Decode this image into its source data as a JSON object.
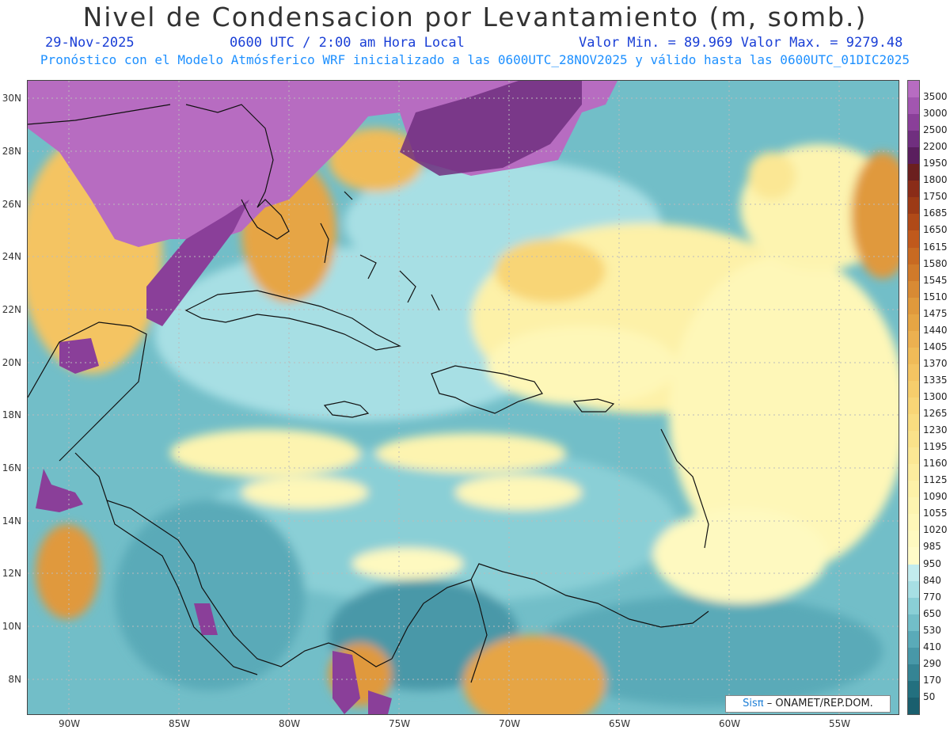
{
  "title": "Nivel de Condensacion por Levantamiento (m, somb.)",
  "header": {
    "date": "29-Nov-2025",
    "time": "0600 UTC / 2:00 am Hora Local",
    "min_max": "Valor Min. = 89.969   Valor Max. = 9279.48"
  },
  "subtitle": "Pronóstico con el Modelo Atmósferico WRF inicializado a las 0600UTC_28NOV2025 y válido hasta las  0600UTC_01DIC2025",
  "axes": {
    "lat_labels": [
      "30N",
      "28N",
      "26N",
      "24N",
      "22N",
      "20N",
      "18N",
      "16N",
      "14N",
      "12N",
      "10N",
      "8N"
    ],
    "lon_labels": [
      "90W",
      "85W",
      "80W",
      "75W",
      "70W",
      "65W",
      "60W",
      "55W"
    ]
  },
  "legend": {
    "levels": [
      "3500",
      "3000",
      "2500",
      "2200",
      "1950",
      "1800",
      "1750",
      "1685",
      "1650",
      "1615",
      "1580",
      "1545",
      "1510",
      "1475",
      "1440",
      "1405",
      "1370",
      "1335",
      "1300",
      "1265",
      "1230",
      "1195",
      "1160",
      "1125",
      "1090",
      "1055",
      "1020",
      "985",
      "950",
      "840",
      "770",
      "650",
      "530",
      "410",
      "290",
      "170",
      "50"
    ],
    "colors": [
      "#b76cc1",
      "#a256b0",
      "#8a3f99",
      "#702f7f",
      "#5a1e5e",
      "#6b1f1f",
      "#8a2c18",
      "#9c3a16",
      "#b04a18",
      "#c0591c",
      "#c86a22",
      "#d07a2a",
      "#d88a34",
      "#e0993c",
      "#e6a544",
      "#ecb050",
      "#f0bb58",
      "#f4c462",
      "#f6cd6c",
      "#f8d576",
      "#f9dc80",
      "#fae28a",
      "#fbe794",
      "#fcec9e",
      "#fdf1a8",
      "#fdf4b0",
      "#fef7b8",
      "#fef9c0",
      "#fffbc8",
      "#c2ecee",
      "#a7dfe4",
      "#8acfd6",
      "#72bec8",
      "#5aaab8",
      "#4898a8",
      "#358494",
      "#23707f"
    ],
    "colormap_name": "lcl-shaded"
  },
  "map": {
    "region": "Caribbean / Gulf of Mexico",
    "land_high_color": "#b76cc1",
    "ocean_base_color": "#72bec8"
  },
  "credit": {
    "sis": "Sisπ",
    "text": "– ONAMET/REP.DOM."
  }
}
